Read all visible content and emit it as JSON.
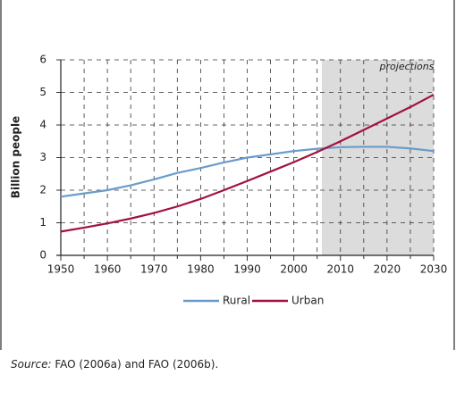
{
  "chart_data": {
    "type": "line",
    "x": [
      1950,
      1955,
      1960,
      1965,
      1970,
      1975,
      1980,
      1985,
      1990,
      1995,
      2000,
      2005,
      2010,
      2015,
      2020,
      2025,
      2030
    ],
    "series": [
      {
        "name": "Rural",
        "color": "#6a9bcb",
        "values": [
          1.8,
          1.9,
          2.0,
          2.15,
          2.33,
          2.53,
          2.68,
          2.85,
          3.0,
          3.1,
          3.2,
          3.27,
          3.32,
          3.33,
          3.33,
          3.28,
          3.2
        ]
      },
      {
        "name": "Urban",
        "color": "#a3113f",
        "values": [
          0.73,
          0.85,
          0.98,
          1.13,
          1.3,
          1.5,
          1.73,
          2.0,
          2.28,
          2.57,
          2.86,
          3.17,
          3.5,
          3.85,
          4.2,
          4.55,
          4.93
        ]
      }
    ],
    "ylabel": "Billion people",
    "xlim": [
      1950,
      2030
    ],
    "xticks": [
      1950,
      1960,
      1970,
      1980,
      1990,
      2000,
      2010,
      2020,
      2030
    ],
    "minor_xticks": [
      1955,
      1965,
      1975,
      1985,
      1995,
      2005,
      2015,
      2025
    ],
    "ylim": [
      0,
      6
    ],
    "yticks": [
      0,
      1,
      2,
      3,
      4,
      5,
      6
    ],
    "grid": true,
    "shaded_region": [
      2006,
      2030
    ],
    "shaded_label": "projections",
    "legend": "bottom",
    "source_label": "Source:",
    "source": "FAO (2006a) and FAO (2006b)."
  }
}
